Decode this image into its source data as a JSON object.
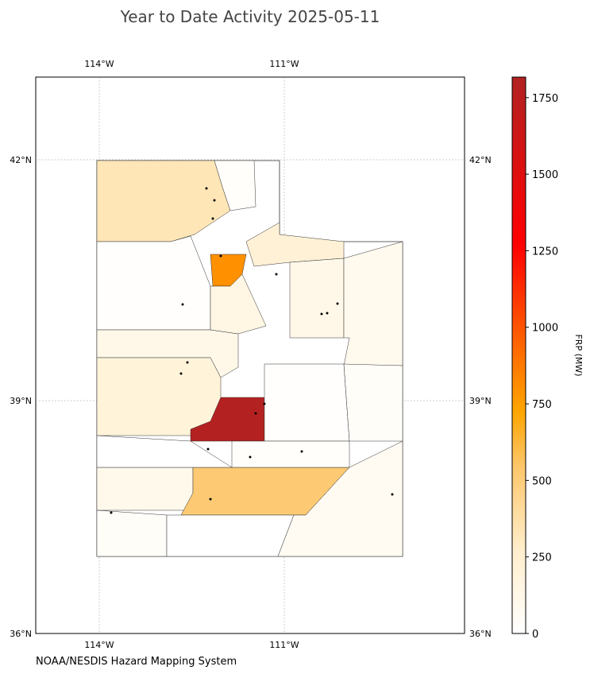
{
  "title": "Year to Date Activity 2025-05-11",
  "lon_labels": [
    "114°W",
    "111°W"
  ],
  "lat_labels": [
    "42°N",
    "39°N",
    "36°N"
  ],
  "credit": "NOAA/NESDIS Hazard Mapping System",
  "colorbar": {
    "label": "FRP (MW)",
    "lim": [
      0,
      1817
    ],
    "ticks": [
      0,
      250,
      500,
      750,
      1000,
      1250,
      1500,
      1750
    ]
  },
  "region_frp": [
    330,
    15,
    120,
    200,
    100,
    520,
    40,
    0,
    70,
    1800,
    800,
    220,
    120,
    90,
    150,
    10,
    40,
    20,
    20,
    0
  ]
}
